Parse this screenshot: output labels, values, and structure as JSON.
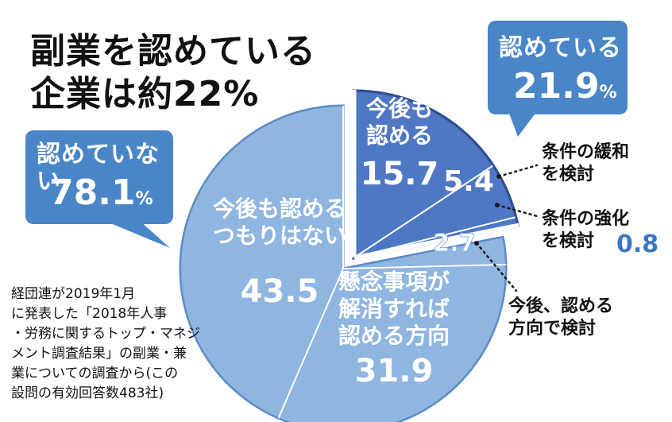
{
  "title_line1": "副業を認めている",
  "title_line2": "企業は約22%",
  "bubble_yes": {
    "label": "認めている",
    "value": "21.9",
    "unit": "%"
  },
  "bubble_no": {
    "label": "認めていない",
    "value": "78.1",
    "unit": "%"
  },
  "callouts": {
    "ease_line1": "条件の緩和",
    "ease_line2": "を検討",
    "tighten_line1": "条件の強化",
    "tighten_line2": "を検討",
    "tighten_value": "0.8",
    "future_line1": "今後、認める",
    "future_line2": "方向で検討"
  },
  "note_lines": [
    "経団連が2019年1月",
    "に発表した「2018年人事",
    "・労務に関するトップ・マネジ",
    "メント調査結果」の副業・兼",
    "業についての調査から(この",
    "設問の有効回答数483社)"
  ],
  "colors": {
    "bubble": "#4a86c7",
    "slice_yes": "#4f78c4",
    "slice_no": "#8fb6e0",
    "edge_dark": "#2f4f95",
    "edge_light": "#5d8bc6"
  },
  "chart_data": {
    "type": "pie",
    "title": "副業を認めている企業は約22%",
    "unit": "%",
    "groups": [
      {
        "name": "認めている",
        "value": 21.9
      },
      {
        "name": "認めていない",
        "value": 78.1
      }
    ],
    "slices": [
      {
        "lines": [
          "今後も",
          "認める"
        ],
        "value": 15.7,
        "group": "認めている"
      },
      {
        "lines": [],
        "value": 5.4,
        "group": "認めている"
      },
      {
        "lines": [],
        "value": 0.8,
        "group": "認めている"
      },
      {
        "lines": [],
        "value": 2.7,
        "group": "認めていない"
      },
      {
        "lines": [
          "懸念事項が",
          "解消すれば",
          "認める方向"
        ],
        "value": 31.9,
        "group": "認めていない"
      },
      {
        "lines": [
          "今後も認める",
          "つもりはない"
        ],
        "value": 43.5,
        "group": "認めていない"
      }
    ]
  }
}
